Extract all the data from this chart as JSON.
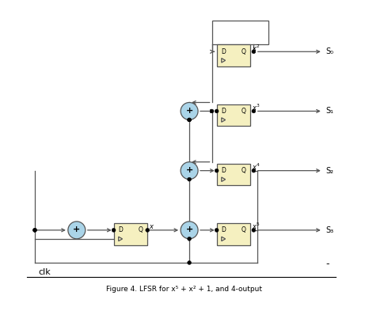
{
  "bg_color": "#ffffff",
  "ff_fill": "#f5f0c0",
  "ff_edge": "#555555",
  "add_fill": "#aad4e8",
  "add_edge": "#555555",
  "lc": "#555555",
  "tc": "#000000",
  "clk_label": "clk",
  "caption": "Figure 4. LFSR for x⁵ + x² + 1, and 4-output",
  "s_labels": [
    "S₀",
    "S₁",
    "S₂",
    "S₃"
  ],
  "figsize": [
    4.66,
    4.12
  ],
  "dpi": 100
}
